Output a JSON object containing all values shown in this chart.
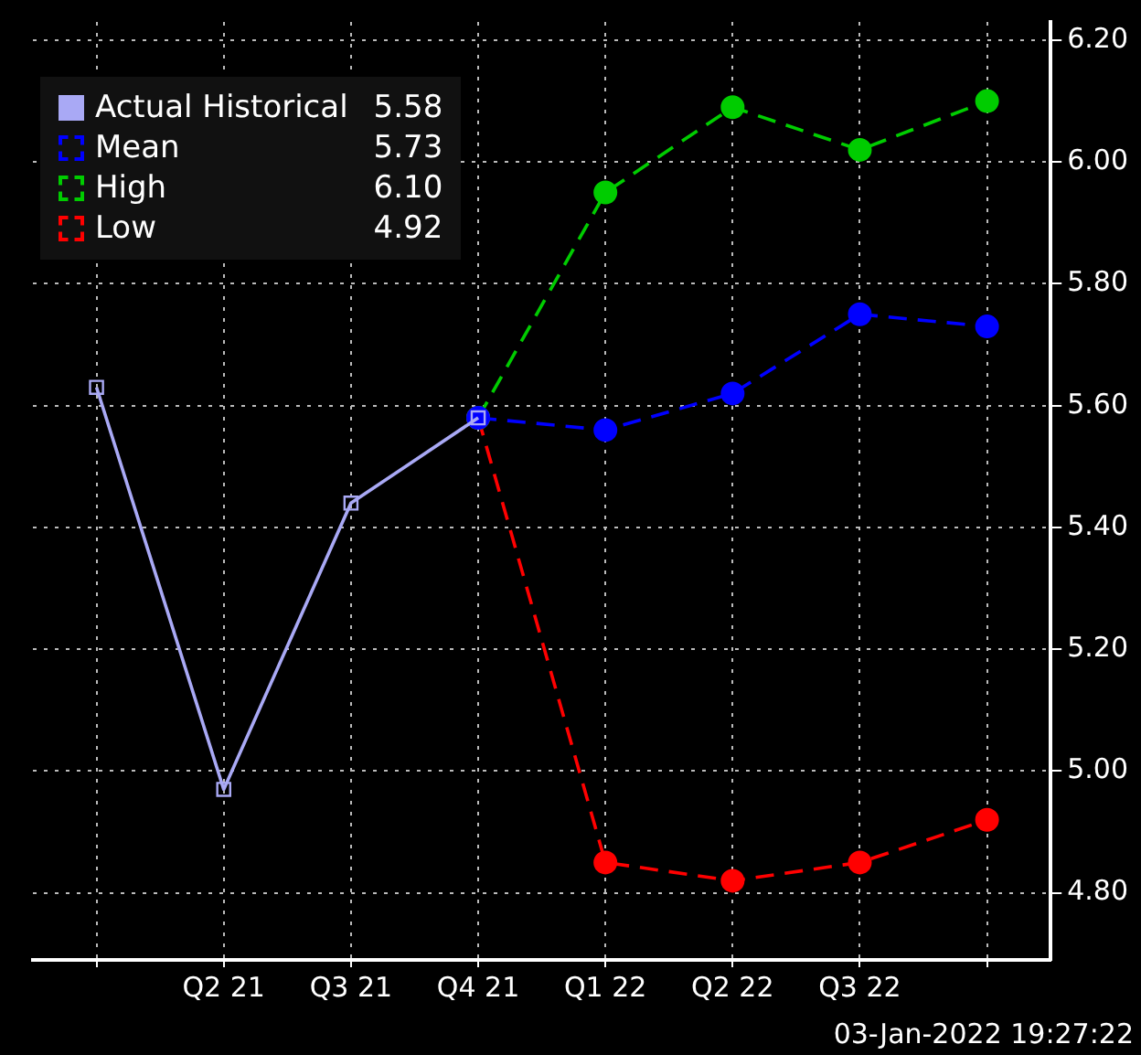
{
  "chart_data": {
    "type": "line",
    "categories": [
      null,
      "Q2 21",
      "Q3 21",
      "Q4 21",
      "Q1 22",
      "Q2 22",
      "Q3 22",
      null
    ],
    "series": [
      {
        "name": "Actual Historical 5.58",
        "color": "#a9a9f5",
        "marker": "square",
        "line_style": "solid",
        "values": [
          5.63,
          4.97,
          5.44,
          5.58,
          null,
          null,
          null,
          null
        ]
      },
      {
        "name": "Mean 5.73",
        "color": "#0000ff",
        "marker": "circle",
        "line_style": "dashed",
        "values": [
          null,
          null,
          null,
          5.58,
          5.56,
          5.62,
          5.75,
          5.73
        ]
      },
      {
        "name": "High 6.10",
        "color": "#00cc00",
        "marker": "circle",
        "line_style": "dashed",
        "values": [
          null,
          null,
          null,
          5.58,
          5.95,
          6.09,
          6.02,
          6.1
        ]
      },
      {
        "name": "Low 4.92",
        "color": "#ff0000",
        "marker": "circle",
        "line_style": "dashed",
        "values": [
          null,
          null,
          null,
          5.58,
          4.85,
          4.82,
          4.85,
          4.92
        ]
      }
    ],
    "ylim": [
      4.69,
      6.23
    ],
    "yticks": [
      {
        "value": 4.8,
        "label": "4.80"
      },
      {
        "value": 5.0,
        "label": "5.00"
      },
      {
        "value": 5.2,
        "label": "5.20"
      },
      {
        "value": 5.4,
        "label": "5.40"
      },
      {
        "value": 5.6,
        "label": "5.60"
      },
      {
        "value": 5.8,
        "label": "5.80"
      },
      {
        "value": 6.0,
        "label": "6.00"
      },
      {
        "value": 6.2,
        "label": "6.20"
      }
    ],
    "grid": true,
    "legend": "top left",
    "annotations": [
      "03-Jan-2022 19:27:22"
    ]
  }
}
